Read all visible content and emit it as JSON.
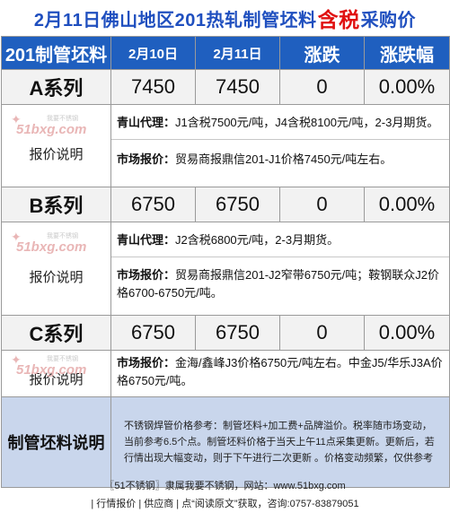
{
  "title": {
    "prefix": "2月11日佛山地区201热轧制管坯料",
    "highlight": "含税",
    "suffix": "采购价"
  },
  "table": {
    "header": {
      "product": "201制管坯料",
      "date1": "2月10日",
      "date2": "2月11日",
      "change": "涨跌",
      "change_pct": "涨跌幅"
    },
    "rows": [
      {
        "name": "A系列",
        "v1": "7450",
        "v2": "7450",
        "change": "0",
        "pct": "0.00%",
        "note_label": "报价说明",
        "lines": [
          {
            "bold": "青山代理：",
            "text": "J1含税7500元/吨，J4含税8100元/吨，2-3月期货。"
          },
          {
            "bold": "市场报价：",
            "text": "贸易商报鼎信201-J1价格7450元/吨左右。"
          }
        ]
      },
      {
        "name": "B系列",
        "v1": "6750",
        "v2": "6750",
        "change": "0",
        "pct": "0.00%",
        "note_label": "报价说明",
        "lines": [
          {
            "bold": "青山代理：",
            "text": "J2含税6800元/吨，2-3月期货。"
          },
          {
            "bold": "市场报价：",
            "text": "贸易商报鼎信201-J2窄带6750元/吨；鞍钢联众J2价格6700-6750元/吨。"
          }
        ]
      },
      {
        "name": "C系列",
        "v1": "6750",
        "v2": "6750",
        "change": "0",
        "pct": "0.00%",
        "note_label": "报价说明",
        "lines": [
          {
            "bold": "市场报价：",
            "text": "金海/鑫峰J3价格6750元/吨左右。中金J5/华乐J3A价格6750元/吨。"
          }
        ]
      }
    ],
    "footer": {
      "label": "制管坯料说明",
      "text": "不锈钢焊管价格参考：制管坯料+加工费+品牌溢价。税率随市场变动，当前参考6.5个点。制管坯料价格于当天上午11点采集更新。更新后，若行情出现大幅变动，则于下午进行二次更新 。价格变动频繁，仅供参考"
    }
  },
  "watermark": {
    "mark": "51bxg.com",
    "sub": "我要不锈钢"
  },
  "bottom": {
    "line1": "〖51不锈钢〗隶属我要不锈钢，网站：www.51bxg.com",
    "line2": "| 行情报价 | 供应商 | 点“阅读原文”获取，咨询:0757-83879051"
  },
  "colors": {
    "header_bg": "#1f5fbf",
    "title_blue": "#1f4fbf",
    "title_red": "#e01010",
    "footer_bg": "#c9d6ec"
  }
}
